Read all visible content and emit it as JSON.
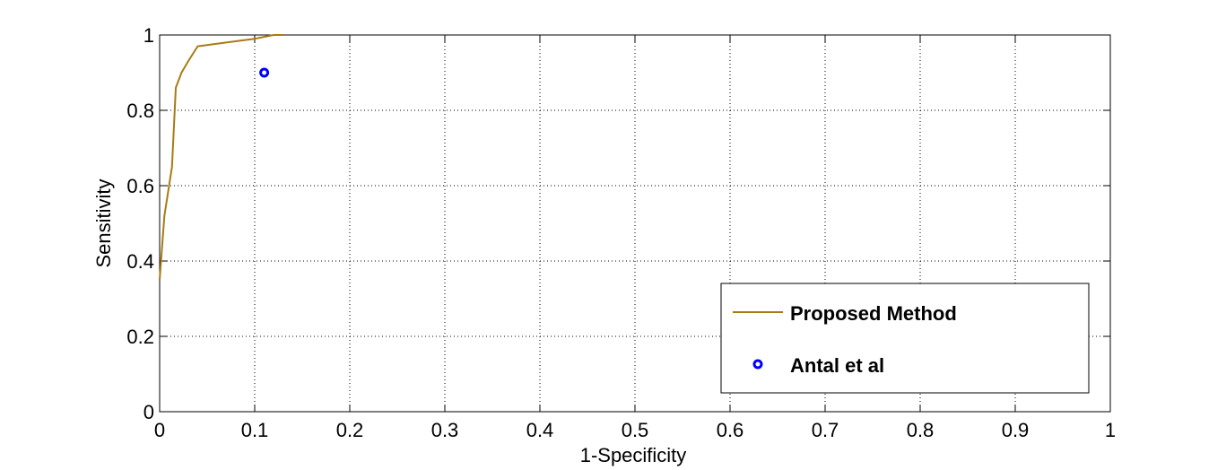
{
  "chart_data": {
    "type": "line",
    "xlabel": "1-Specificity",
    "ylabel": "Sensitivity",
    "xlim": [
      0,
      1
    ],
    "ylim": [
      0,
      1
    ],
    "grid": true,
    "legend_position": "bottom-right",
    "x_ticks": [
      "0",
      "0.1",
      "0.2",
      "0.3",
      "0.4",
      "0.5",
      "0.6",
      "0.7",
      "0.8",
      "0.9",
      "1"
    ],
    "y_ticks": [
      "0",
      "0.2",
      "0.4",
      "0.6",
      "0.8",
      "1"
    ],
    "series": [
      {
        "name": "Proposed Method",
        "type": "line",
        "color": "#a87b14",
        "x": [
          0.0,
          0.005,
          0.013,
          0.017,
          0.023,
          0.03,
          0.04,
          0.1,
          0.12,
          0.13
        ],
        "y": [
          0.35,
          0.52,
          0.65,
          0.86,
          0.9,
          0.93,
          0.97,
          0.99,
          1.0,
          1.0
        ]
      },
      {
        "name": "Antal et al",
        "type": "scatter",
        "color": "#0000ff",
        "marker": "circle",
        "x": [
          0.11
        ],
        "y": [
          0.9
        ]
      }
    ]
  }
}
